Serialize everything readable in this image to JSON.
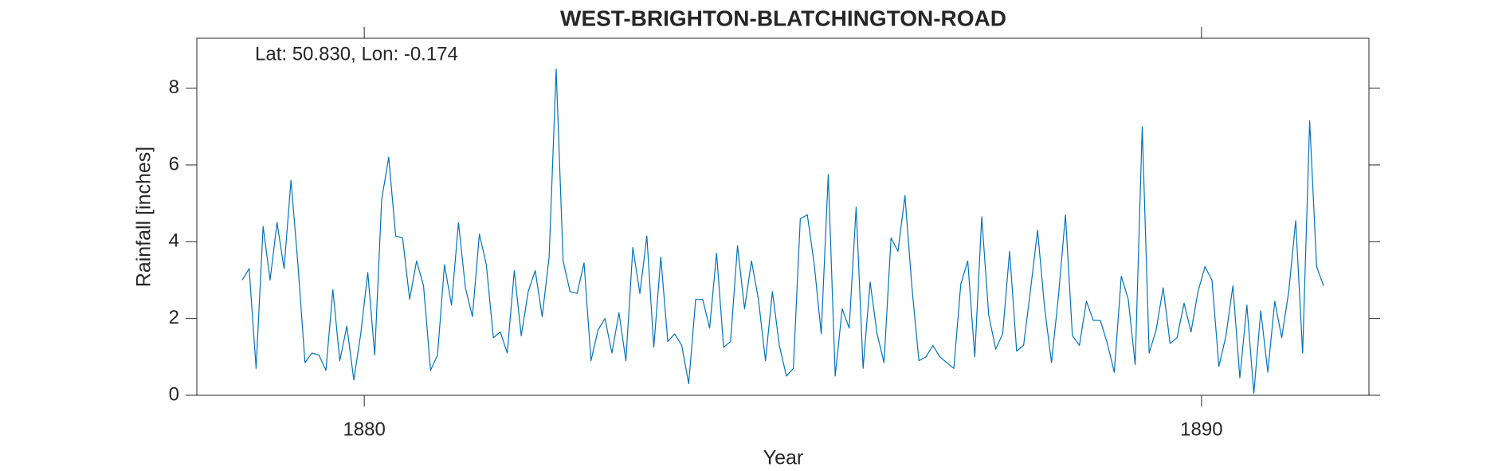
{
  "chart_data": {
    "type": "line",
    "title": "WEST-BRIGHTON-BLATCHINGTON-ROAD",
    "annotation": "Lat: 50.830, Lon: -0.174",
    "xlabel": "Year",
    "ylabel": "Rainfall [inches]",
    "color": "#0072bd",
    "xlim": [
      1878,
      1892
    ],
    "xticks": [
      1880,
      1890
    ],
    "ylim": [
      0,
      9.3
    ],
    "yticks": [
      0,
      2,
      4,
      6,
      8
    ],
    "x": [
      1878.542,
      1878.625,
      1878.708,
      1878.792,
      1878.875,
      1878.958,
      1879.042,
      1879.125,
      1879.208,
      1879.292,
      1879.375,
      1879.458,
      1879.542,
      1879.625,
      1879.708,
      1879.792,
      1879.875,
      1879.958,
      1880.042,
      1880.125,
      1880.208,
      1880.292,
      1880.375,
      1880.458,
      1880.542,
      1880.625,
      1880.708,
      1880.792,
      1880.875,
      1880.958,
      1881.042,
      1881.125,
      1881.208,
      1881.292,
      1881.375,
      1881.458,
      1881.542,
      1881.625,
      1881.708,
      1881.792,
      1881.875,
      1881.958,
      1882.042,
      1882.125,
      1882.208,
      1882.292,
      1882.375,
      1882.458,
      1882.542,
      1882.625,
      1882.708,
      1882.792,
      1882.875,
      1882.958,
      1883.042,
      1883.125,
      1883.208,
      1883.292,
      1883.375,
      1883.458,
      1883.542,
      1883.625,
      1883.708,
      1883.792,
      1883.875,
      1883.958,
      1884.042,
      1884.125,
      1884.208,
      1884.292,
      1884.375,
      1884.458,
      1884.542,
      1884.625,
      1884.708,
      1884.792,
      1884.875,
      1884.958,
      1885.042,
      1885.125,
      1885.208,
      1885.292,
      1885.375,
      1885.458,
      1885.542,
      1885.625,
      1885.708,
      1885.792,
      1885.875,
      1885.958,
      1886.042,
      1886.125,
      1886.208,
      1886.292,
      1886.375,
      1886.458,
      1886.542,
      1886.625,
      1886.708,
      1886.792,
      1886.875,
      1886.958,
      1887.042,
      1887.125,
      1887.208,
      1887.292,
      1887.375,
      1887.458,
      1887.542,
      1887.625,
      1887.708,
      1887.792,
      1887.875,
      1887.958,
      1888.042,
      1888.125,
      1888.208,
      1888.292,
      1888.375,
      1888.458,
      1888.542,
      1888.625,
      1888.708,
      1888.792,
      1888.875,
      1888.958,
      1889.042,
      1889.125,
      1889.208,
      1889.292,
      1889.375,
      1889.458,
      1889.542,
      1889.625,
      1889.708,
      1889.792,
      1889.875,
      1889.958,
      1890.042,
      1890.125,
      1890.208,
      1890.292,
      1890.375,
      1890.458,
      1890.542,
      1890.625,
      1890.708,
      1890.792,
      1890.875,
      1890.958,
      1891.042,
      1891.125,
      1891.208,
      1891.292,
      1891.375,
      1891.458
    ],
    "values": [
      3.0,
      3.3,
      0.7,
      4.4,
      3.0,
      4.5,
      3.3,
      5.6,
      3.4,
      0.85,
      1.1,
      1.05,
      0.65,
      2.75,
      0.9,
      1.8,
      0.4,
      1.6,
      3.2,
      1.05,
      5.1,
      6.2,
      4.15,
      4.1,
      2.5,
      3.5,
      2.85,
      0.65,
      1.05,
      3.4,
      2.35,
      4.5,
      2.8,
      2.05,
      4.2,
      3.4,
      1.5,
      1.65,
      1.1,
      3.25,
      1.55,
      2.7,
      3.25,
      2.05,
      3.6,
      8.5,
      3.5,
      2.7,
      2.65,
      3.45,
      0.9,
      1.7,
      2.0,
      1.1,
      2.15,
      0.9,
      3.85,
      2.65,
      4.15,
      1.25,
      3.6,
      1.4,
      1.6,
      1.3,
      0.3,
      2.5,
      2.5,
      1.75,
      3.7,
      1.25,
      1.4,
      3.9,
      2.25,
      3.5,
      2.5,
      0.9,
      2.7,
      1.3,
      0.5,
      0.7,
      4.6,
      4.7,
      3.4,
      1.6,
      5.75,
      0.5,
      2.25,
      1.75,
      4.9,
      0.7,
      2.95,
      1.6,
      0.85,
      4.1,
      3.75,
      5.2,
      2.8,
      0.9,
      1.0,
      1.3,
      1.0,
      0.85,
      0.7,
      2.9,
      3.5,
      1.0,
      4.65,
      2.1,
      1.2,
      1.6,
      3.75,
      1.15,
      1.3,
      2.75,
      4.3,
      2.3,
      0.85,
      2.6,
      4.7,
      1.55,
      1.3,
      2.45,
      1.95,
      1.95,
      1.35,
      0.6,
      3.1,
      2.5,
      0.8,
      7.0,
      1.1,
      1.7,
      2.8,
      1.35,
      1.5,
      2.4,
      1.65,
      2.7,
      3.35,
      3.0,
      0.75,
      1.55,
      2.85,
      0.45,
      2.35,
      0.05,
      2.2,
      0.6,
      2.45,
      1.5,
      2.7,
      4.55,
      1.1,
      7.15,
      3.35,
      2.85
    ]
  }
}
